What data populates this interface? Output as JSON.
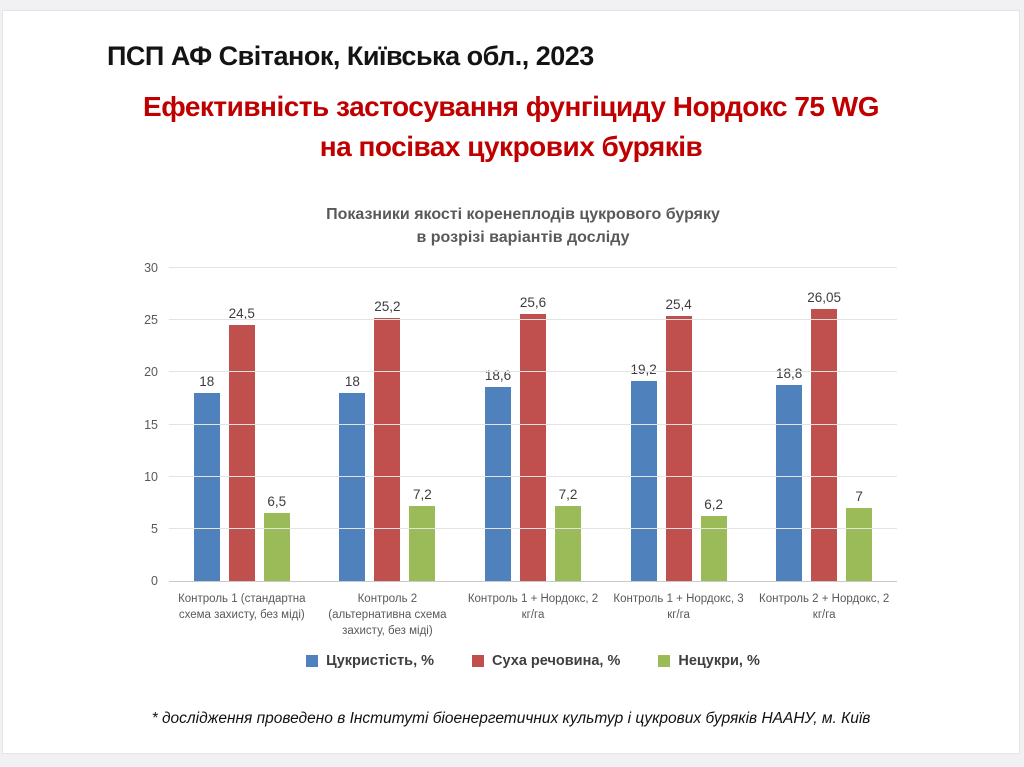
{
  "slide": {
    "top_title": "ПСП АФ Світанок, Київська обл., 2023",
    "main_title": {
      "line1": "Ефективність застосування фунгіциду Нордокс 75 WG",
      "line2": "на посівах цукрових буряків"
    },
    "footnote": "* дослідження проведено в Інституті біоенергетичних культур і цукрових буряків НААНУ, м. Київ"
  },
  "colors": {
    "heading_red": "#C00000",
    "series_blue": "#4F81BD",
    "series_red": "#C0504D",
    "series_green": "#9BBB59",
    "gridline": "#E3E3E3",
    "axis_text": "#595959"
  },
  "chart_data": {
    "type": "bar",
    "title": "Показники якості коренеплодів цукрового буряку в розрізі варіантів досліду",
    "title_line1": "Показники якості коренеплодів цукрового буряку",
    "title_line2": "в розрізі варіантів досліду",
    "categories": [
      "Контроль 1 (стандартна схема захисту, без міді)",
      "Контроль 2 (альтернативна схема захисту, без міді)",
      "Контроль 1 + Нордокс, 2 кг/га",
      "Контроль 1 + Нордокс, 3 кг/га",
      "Контроль 2 + Нордокс, 2 кг/га"
    ],
    "series": [
      {
        "name": "Цукристість, %",
        "color": "#4F81BD",
        "values": [
          18,
          18,
          18.6,
          19.2,
          18.8
        ],
        "labels": [
          "18",
          "18",
          "18,6",
          "19,2",
          "18,8"
        ]
      },
      {
        "name": "Суха речовина, %",
        "color": "#C0504D",
        "values": [
          24.5,
          25.2,
          25.6,
          25.4,
          26.05
        ],
        "labels": [
          "24,5",
          "25,2",
          "25,6",
          "25,4",
          "26,05"
        ]
      },
      {
        "name": "Нецукри, %",
        "color": "#9BBB59",
        "values": [
          6.5,
          7.2,
          7.2,
          6.2,
          7
        ],
        "labels": [
          "6,5",
          "7,2",
          "7,2",
          "6,2",
          "7"
        ]
      }
    ],
    "xlabel": "",
    "ylabel": "",
    "ylim": [
      0,
      30
    ],
    "y_ticks": [
      0,
      5,
      10,
      15,
      20,
      25,
      30
    ],
    "grid": true,
    "legend_position": "bottom"
  }
}
